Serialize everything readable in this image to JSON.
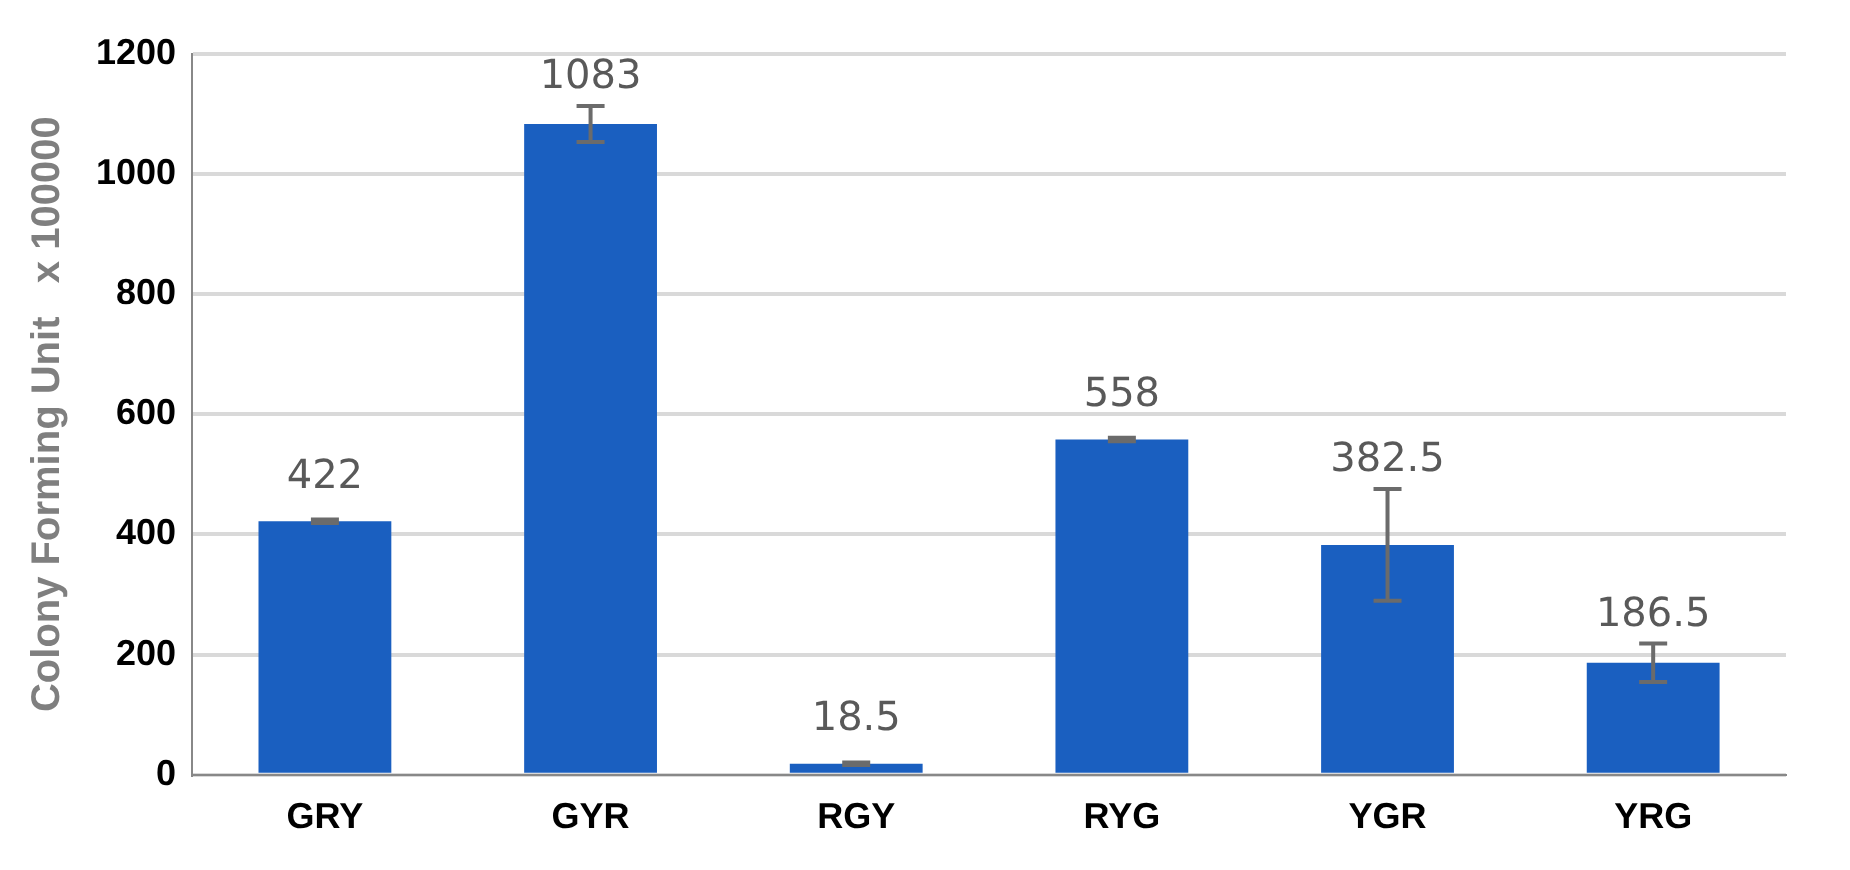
{
  "chart_data": {
    "type": "bar",
    "ylabel": "Colony Forming Unit   x 100000",
    "categories": [
      "GRY",
      "GYR",
      "RGY",
      "RYG",
      "YGR",
      "YRG"
    ],
    "values": [
      422,
      1083,
      18.5,
      558,
      382.5,
      186.5
    ],
    "errors": [
      3,
      30,
      2,
      3,
      93,
      32
    ],
    "color": "#1a5fc0",
    "ylim": [
      0,
      1200
    ],
    "yticks": [
      0,
      200,
      400,
      600,
      800,
      1000,
      1200
    ],
    "grid": "y",
    "data_labels": true
  }
}
